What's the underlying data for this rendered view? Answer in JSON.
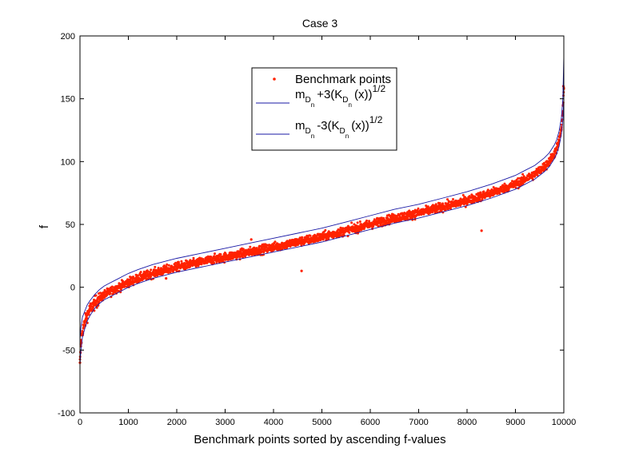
{
  "chart_data": {
    "type": "scatter",
    "title": "Case 3",
    "xlabel": "Benchmark points sorted by  ascending f-values",
    "ylabel": "f",
    "xlim": [
      0,
      10000
    ],
    "ylim": [
      -100,
      200
    ],
    "xticks": [
      0,
      1000,
      2000,
      3000,
      4000,
      5000,
      6000,
      7000,
      8000,
      9000,
      10000
    ],
    "yticks": [
      -100,
      -50,
      0,
      50,
      100,
      150,
      200
    ],
    "grid": false,
    "legend_placement": "top-center",
    "colors": {
      "points": "#ff2200",
      "bands": "#1a1aa6",
      "axes": "#000000"
    },
    "legend": {
      "points": "Benchmark points",
      "upper": {
        "m": "m",
        "d": "D",
        "n": "n",
        "rest": "+3(K",
        "d2": "D",
        "n2": "n",
        "close": "(x))",
        "exp": "1/2"
      },
      "lower": {
        "m": "m",
        "d": "D",
        "n": "n",
        "rest": "-3(K",
        "d2": "D",
        "n2": "n",
        "close": "(x))",
        "exp": "1/2"
      }
    },
    "series": [
      {
        "name": "Benchmark points",
        "kind": "scatter",
        "x": [
          0,
          20,
          50,
          100,
          150,
          200,
          300,
          400,
          500,
          600,
          700,
          800,
          900,
          1000,
          1200,
          1500,
          1800,
          2000,
          2500,
          3000,
          3500,
          4000,
          4500,
          5000,
          5500,
          6000,
          6500,
          7000,
          7500,
          8000,
          8500,
          9000,
          9200,
          9400,
          9600,
          9700,
          9800,
          9850,
          9900,
          9950,
          9980,
          10000
        ],
        "y": [
          -60,
          -45,
          -35,
          -28,
          -22,
          -18,
          -13,
          -9,
          -6,
          -4,
          -2,
          0,
          2,
          4,
          7,
          11,
          14,
          16,
          20,
          24,
          28,
          32,
          36,
          40,
          45,
          50,
          55,
          59,
          64,
          69,
          75,
          82,
          86,
          90,
          96,
          100,
          106,
          110,
          116,
          126,
          140,
          158
        ],
        "outliers": [
          {
            "x": 4580,
            "y": 13
          },
          {
            "x": 8300,
            "y": 45
          },
          {
            "x": 3540,
            "y": 38
          },
          {
            "x": 1780,
            "y": 7
          },
          {
            "x": 9990,
            "y": 160
          }
        ]
      },
      {
        "name": "upper",
        "kind": "line",
        "x": [
          0,
          20,
          50,
          100,
          150,
          200,
          300,
          400,
          500,
          600,
          700,
          800,
          900,
          1000,
          1200,
          1500,
          1800,
          2000,
          2500,
          3000,
          3500,
          4000,
          4500,
          5000,
          5500,
          6000,
          6500,
          7000,
          7500,
          8000,
          8500,
          9000,
          9200,
          9400,
          9600,
          9700,
          9800,
          9850,
          9900,
          9950,
          9980,
          10000
        ],
        "y": [
          -42,
          -32,
          -24,
          -19,
          -14,
          -11,
          -6,
          -2,
          1,
          3,
          5,
          7,
          9,
          11,
          14,
          18,
          21,
          23,
          27,
          31,
          35,
          39,
          43,
          47,
          52,
          57,
          62,
          66,
          71,
          76,
          82,
          89,
          93,
          97,
          103,
          107,
          113,
          117,
          124,
          135,
          150,
          184
        ]
      },
      {
        "name": "lower",
        "kind": "line",
        "x": [
          0,
          20,
          50,
          100,
          150,
          200,
          300,
          400,
          500,
          600,
          700,
          800,
          900,
          1000,
          1200,
          1500,
          1800,
          2000,
          2500,
          3000,
          3500,
          4000,
          4500,
          5000,
          5500,
          6000,
          6500,
          7000,
          7500,
          8000,
          8500,
          9000,
          9200,
          9400,
          9600,
          9700,
          9800,
          9850,
          9900,
          9950,
          9980,
          10000
        ],
        "y": [
          -62,
          -50,
          -40,
          -33,
          -27,
          -23,
          -17,
          -13,
          -10,
          -8,
          -6,
          -4,
          -2,
          0,
          3,
          7,
          10,
          12,
          16,
          20,
          24,
          28,
          32,
          36,
          41,
          46,
          51,
          55,
          60,
          65,
          71,
          78,
          82,
          86,
          92,
          96,
          102,
          106,
          112,
          122,
          134,
          150
        ]
      }
    ]
  }
}
